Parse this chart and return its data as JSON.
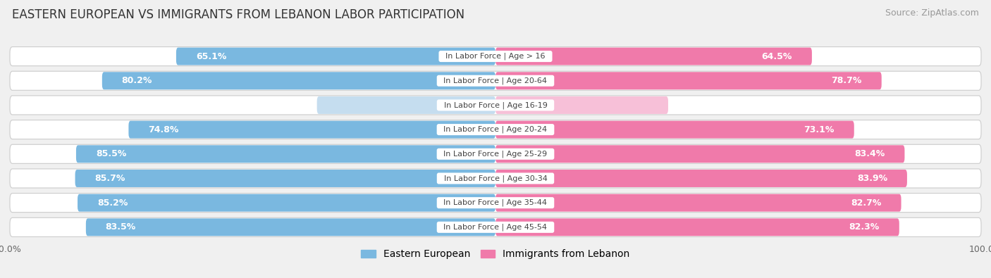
{
  "title": "EASTERN EUROPEAN VS IMMIGRANTS FROM LEBANON LABOR PARTICIPATION",
  "source": "Source: ZipAtlas.com",
  "categories": [
    "In Labor Force | Age > 16",
    "In Labor Force | Age 20-64",
    "In Labor Force | Age 16-19",
    "In Labor Force | Age 20-24",
    "In Labor Force | Age 25-29",
    "In Labor Force | Age 30-34",
    "In Labor Force | Age 35-44",
    "In Labor Force | Age 45-54"
  ],
  "eastern_european": [
    65.1,
    80.2,
    36.4,
    74.8,
    85.5,
    85.7,
    85.2,
    83.5
  ],
  "lebanon": [
    64.5,
    78.7,
    35.2,
    73.1,
    83.4,
    83.9,
    82.7,
    82.3
  ],
  "ee_color": "#7ab8e0",
  "ee_color_light": "#c5ddef",
  "lb_color": "#f07aaa",
  "lb_color_light": "#f7c0d8",
  "background_color": "#f0f0f0",
  "title_fontsize": 12,
  "label_fontsize": 9,
  "tick_fontsize": 9,
  "legend_fontsize": 10,
  "source_fontsize": 9
}
